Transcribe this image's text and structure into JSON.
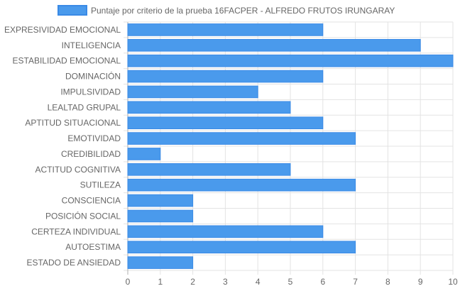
{
  "colors": {
    "bar_fill": "#4a9aec",
    "bar_stroke": "#3a8ae6",
    "grid": "#e3e3e3",
    "axis": "#b0b0b0",
    "text": "#666666"
  },
  "chart_data": {
    "type": "bar",
    "orientation": "horizontal",
    "legend": "top",
    "grid": true,
    "series": [
      {
        "name": "Puntaje por criterio de la prueba 16FACPER - ALFREDO FRUTOS IRUNGARAY",
        "values": [
          6,
          9,
          10,
          6,
          4,
          5,
          6,
          7,
          1,
          5,
          7,
          2,
          2,
          6,
          7,
          2
        ]
      }
    ],
    "categories": [
      "EXPRESIVIDAD EMOCIONAL",
      "INTELIGENCIA",
      "ESTABILIDAD EMOCIONAL",
      "DOMINACIÓN",
      "IMPULSIVIDAD",
      "LEALTAD GRUPAL",
      "APTITUD SITUACIONAL",
      "EMOTIVIDAD",
      "CREDIBILIDAD",
      "ACTITUD COGNITIVA",
      "SUTILEZA",
      "CONSCIENCIA",
      "POSICIÓN SOCIAL",
      "CERTEZA INDIVIDUAL",
      "AUTOESTIMA",
      "ESTADO DE ANSIEDAD"
    ],
    "xlim": [
      0,
      10
    ],
    "x_ticks": [
      "0",
      "1",
      "2",
      "3",
      "4",
      "5",
      "6",
      "7",
      "8",
      "9",
      "10"
    ]
  }
}
